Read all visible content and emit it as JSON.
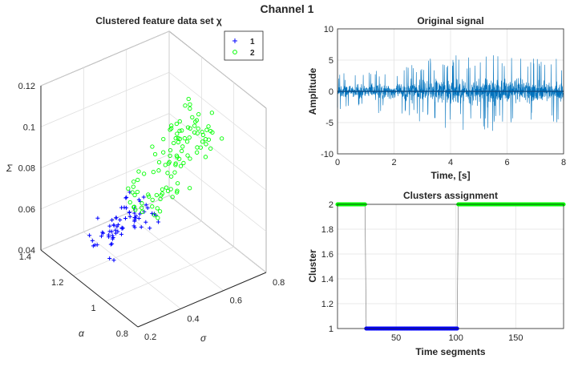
{
  "figure": {
    "title": "Channel 1"
  },
  "chart_data": [
    {
      "type": "scatter",
      "projection": "3d",
      "title": "Clustered feature data set χ",
      "xlabel": "σ",
      "ylabel": "α",
      "zlabel": "Σ",
      "xlim": [
        0.2,
        0.8
      ],
      "ylim": [
        0.8,
        1.4
      ],
      "zlim": [
        0.04,
        0.12
      ],
      "xticks": [
        "0.2",
        "0.4",
        "0.6",
        "0.8"
      ],
      "yticks": [
        "0.8",
        "1",
        "1.2",
        "1.4"
      ],
      "zticks": [
        "0.04",
        "0.06",
        "0.08",
        "0.1",
        "0.12"
      ],
      "grid": true,
      "legend_position": "top-right",
      "series": [
        {
          "name": "1",
          "marker": "+",
          "color": "#0000ff",
          "points_count": 70,
          "x_range": [
            0.25,
            0.5
          ],
          "y_range": [
            1.0,
            1.25
          ],
          "z_range": [
            0.055,
            0.068
          ]
        },
        {
          "name": "2",
          "marker": "o",
          "color": "#00ff00",
          "points_count": 110,
          "x_range": [
            0.45,
            0.8
          ],
          "y_range": [
            1.0,
            1.3
          ],
          "z_range": [
            0.06,
            0.1
          ]
        }
      ]
    },
    {
      "type": "line",
      "title": "Original signal",
      "xlabel": "Time, [s]",
      "ylabel": "Amplitude",
      "xlim": [
        0,
        8
      ],
      "ylim": [
        -10,
        10
      ],
      "xticks": [
        "0",
        "2",
        "4",
        "6",
        "8"
      ],
      "yticks": [
        "10",
        "5",
        "0",
        "-5",
        "-10"
      ],
      "grid": true,
      "color": "#0072bd",
      "amplitude_envelope": [
        [
          0,
          2.5
        ],
        [
          1,
          2.5
        ],
        [
          1.2,
          3
        ],
        [
          2,
          3
        ],
        [
          2.5,
          4
        ],
        [
          3.2,
          4.5
        ],
        [
          4,
          5
        ],
        [
          5,
          5.3
        ],
        [
          6,
          5.3
        ],
        [
          6.5,
          4.8
        ],
        [
          7,
          4.5
        ],
        [
          8,
          4.3
        ]
      ]
    },
    {
      "type": "scatter",
      "title": "Clusters assignment",
      "xlabel": "Time segments",
      "ylabel": "Cluster",
      "xlim": [
        1,
        190
      ],
      "ylim": [
        1,
        2
      ],
      "xticks": [
        "50",
        "100",
        "150"
      ],
      "yticks": [
        "2",
        "1.8",
        "1.6",
        "1.4",
        "1.2",
        "1"
      ],
      "grid": true,
      "series": [
        {
          "name": "2",
          "x_range": [
            1,
            24
          ],
          "y": 2,
          "color": "#00ff00"
        },
        {
          "name": "1",
          "x_range": [
            25,
            101
          ],
          "y": 1,
          "color": "#0000ff"
        },
        {
          "name": "2",
          "x_range": [
            102,
            190
          ],
          "y": 2,
          "color": "#00ff00"
        }
      ]
    }
  ]
}
